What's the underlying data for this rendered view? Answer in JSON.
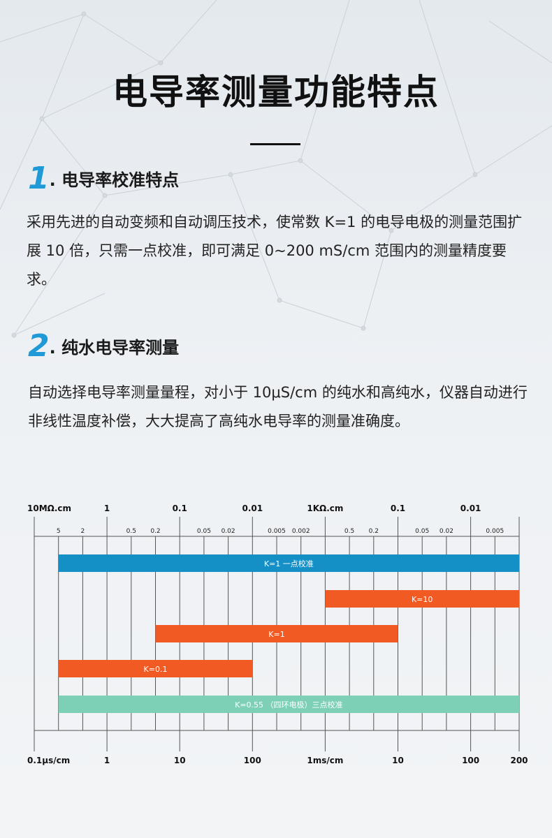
{
  "title": "电导率测量功能特点",
  "sections": [
    {
      "number": "1",
      "heading": ". 电导率校准特点",
      "text": "采用先进的自动变频和自动调压技术，使常数 K=1 的电导电极的测量范围扩展 10 倍，只需一点校准，即可满足 0~200 mS/cm 范围内的测量精度要求。"
    },
    {
      "number": "2",
      "heading": ". 纯水电导率测量",
      "text": "自动选择电导率测量量程，对小于  10μS/cm  的纯水和高纯水，仪器自动进行非线性温度补偿，大大提高了高纯水电导率的测量准确度。"
    }
  ],
  "colors": {
    "accent": "#1f9ad6",
    "blue_bar": "#1590c6",
    "orange_bar": "#f25a24",
    "green_bar": "#7dd0b6"
  },
  "chart_data": {
    "type": "range-bar",
    "scale": "log",
    "top_major_labels": [
      "10MΩ.cm",
      "1",
      "0.1",
      "0.01",
      "1KΩ.cm",
      "0.1",
      "0.01"
    ],
    "top_minor_labels": [
      "5",
      "2",
      "0.5",
      "0.2",
      "0.05",
      "0.02",
      "0.005",
      "0.002",
      "0.5",
      "0.2",
      "0.05",
      "0.02",
      "0.005"
    ],
    "bottom_labels": [
      "0.1μs/cm",
      "1",
      "10",
      "100",
      "1ms/cm",
      "10",
      "100",
      "200"
    ],
    "unit_note": "values in μS/cm",
    "bars": [
      {
        "label": "K=1  一点校准",
        "from": 0.2,
        "to": 200000,
        "color": "#1590c6"
      },
      {
        "label": "K=10",
        "from": 1000,
        "to": 200000,
        "color": "#f25a24"
      },
      {
        "label": "K=1",
        "from": 5,
        "to": 10000,
        "color": "#f25a24"
      },
      {
        "label": "K=0.1",
        "from": 0.2,
        "to": 100,
        "color": "#f25a24"
      },
      {
        "label": "K=0.55 （四环电极）三点校准",
        "from": 0.2,
        "to": 200000,
        "color": "#7dd0b6"
      }
    ]
  }
}
